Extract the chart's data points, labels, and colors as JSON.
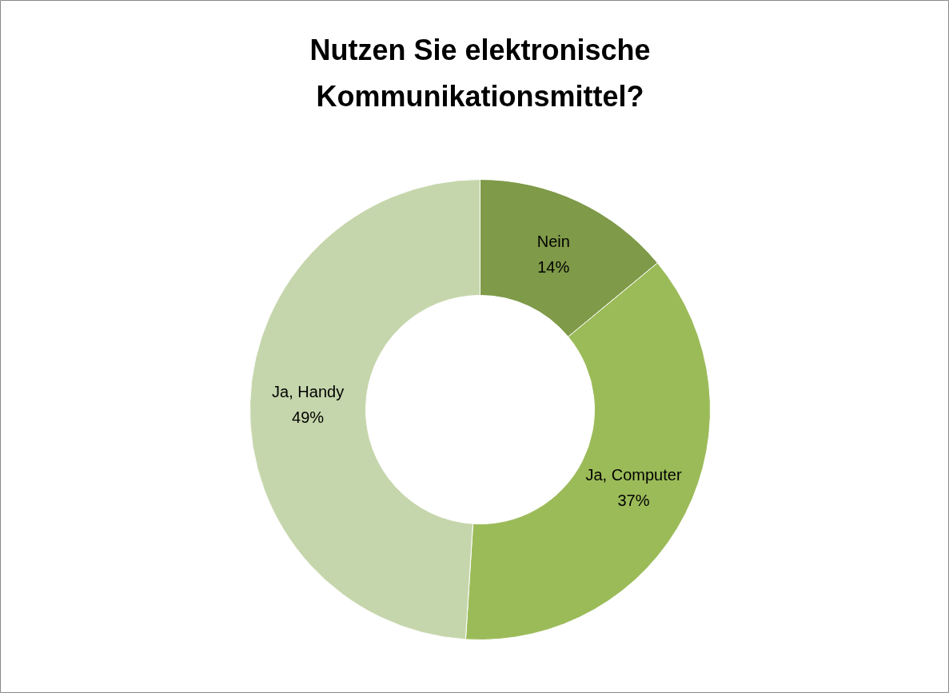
{
  "chart_data": {
    "type": "donut",
    "title": "Nutzen Sie elektronische Kommunikationsmittel?",
    "categories": [
      "Nein",
      "Ja, Computer",
      "Ja, Handy"
    ],
    "values": [
      14,
      37,
      49
    ],
    "colors": [
      "#7f9a48",
      "#9bbb59",
      "#c6d6ac"
    ],
    "value_labels": [
      "14%",
      "37%",
      "49%"
    ]
  }
}
